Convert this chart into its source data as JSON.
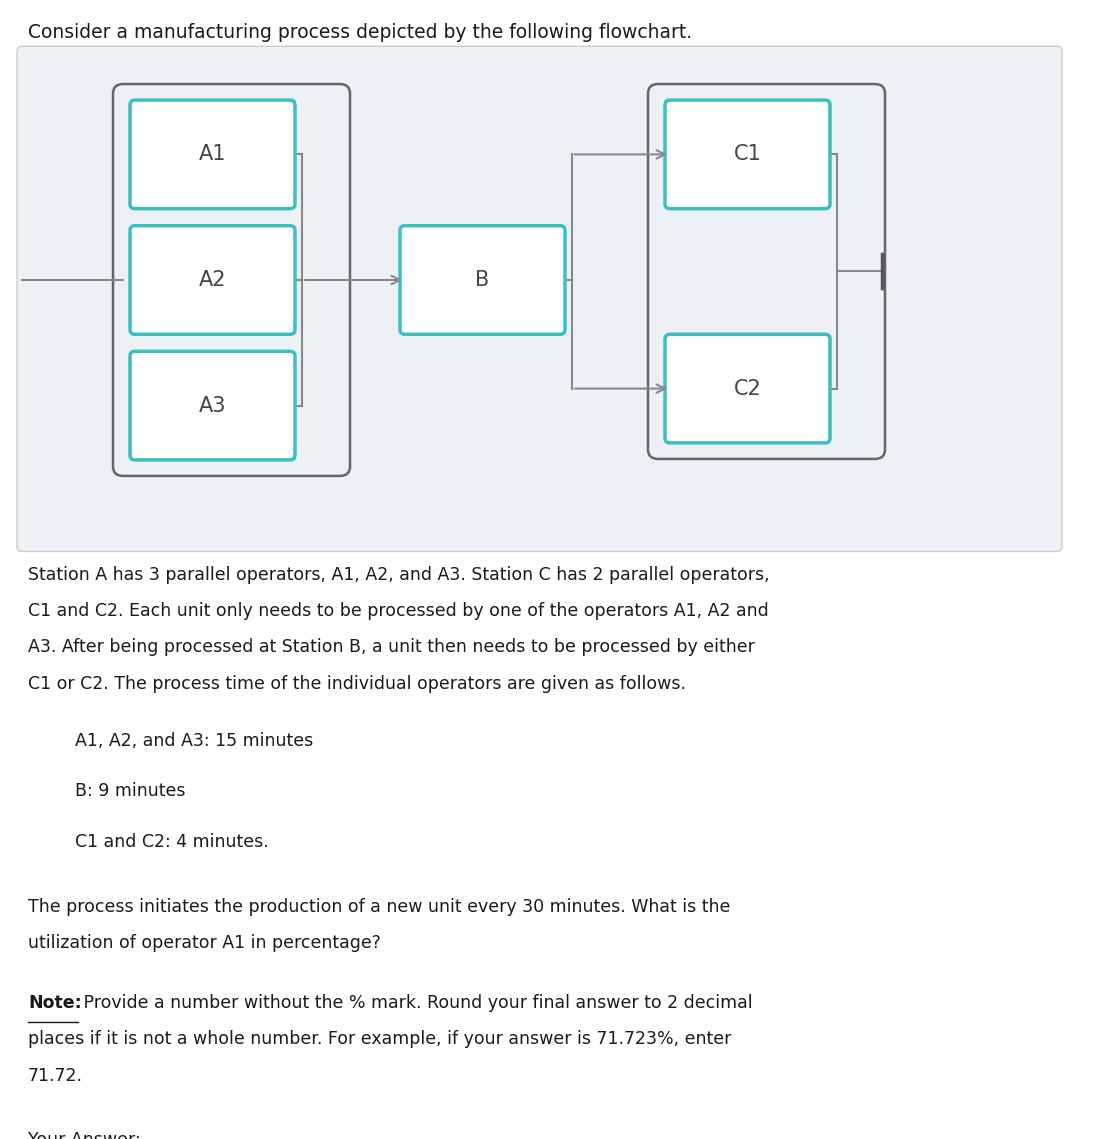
{
  "title": "Consider a manufacturing process depicted by the following flowchart.",
  "bg_color": "#edf0f5",
  "box_border_color": "#3bbfbf",
  "box_fill_color": "#ffffff",
  "connector_color": "#888888",
  "box_labels": [
    "A1",
    "A2",
    "A3",
    "B",
    "C1",
    "C2"
  ],
  "paragraph1_lines": [
    "Station A has 3 parallel operators, A1, A2, and A3. Station C has 2 parallel operators,",
    "C1 and C2. Each unit only needs to be processed by one of the operators A1, A2 and",
    "A3. After being processed at Station B, a unit then needs to be processed by either",
    "C1 or C2. The process time of the individual operators are given as follows."
  ],
  "bullet1": "A1, A2, and A3: 15 minutes",
  "bullet2": "B: 9 minutes",
  "bullet3": "C1 and C2: 4 minutes.",
  "paragraph2_lines": [
    "The process initiates the production of a new unit every 30 minutes. What is the",
    "utilization of operator A1 in percentage?"
  ],
  "note_bold": "Note:",
  "note_line1_rest": " Provide a number without the % mark. Round your final answer to 2 decimal",
  "note_line2": "places if it is not a whole number. For example, if your answer is 71.723%, enter",
  "note_line3": "71.72.",
  "answer_label": "Your Answer:"
}
